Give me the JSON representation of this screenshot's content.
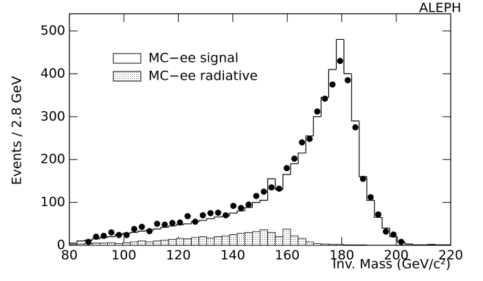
{
  "chart_data": {
    "type": "histogram",
    "experiment_label": "ALEPH",
    "xlabel": "Inv. Mass (GeV/c²)",
    "ylabel": "Events / 2.8 GeV",
    "bins": [
      80,
      82.8,
      85.6,
      88.4,
      91.2,
      94,
      96.8,
      99.6,
      102.4,
      105.2,
      108,
      110.8,
      113.6,
      116.4,
      119.2,
      122,
      124.8,
      127.6,
      130.4,
      133.2,
      136,
      138.8,
      141.6,
      144.4,
      147.2,
      150,
      152.8,
      155.6,
      158.4,
      161.2,
      164,
      166.8,
      169.6,
      172.4,
      175.2,
      178,
      180.8,
      183.6,
      186.4,
      189.2,
      192,
      194.8,
      197.6,
      200.4,
      203.2,
      206,
      208.8,
      211.6,
      214.4,
      217.2,
      220
    ],
    "series": [
      {
        "name": "MC−ee signal",
        "style": "step",
        "color": "#000000",
        "values": [
          5,
          10,
          12,
          15,
          18,
          20,
          25,
          28,
          30,
          33,
          35,
          38,
          42,
          45,
          48,
          50,
          55,
          58,
          62,
          66,
          68,
          75,
          80,
          88,
          100,
          105,
          155,
          130,
          165,
          190,
          215,
          255,
          300,
          345,
          410,
          480,
          400,
          290,
          160,
          105,
          65,
          40,
          20,
          8,
          3,
          1,
          1,
          2,
          1,
          1
        ]
      },
      {
        "name": "MC−ee radiative",
        "style": "filled",
        "color": "#999999",
        "values": [
          2,
          3,
          4,
          5,
          5,
          6,
          4,
          6,
          8,
          10,
          8,
          10,
          12,
          14,
          16,
          15,
          18,
          20,
          17,
          20,
          22,
          25,
          28,
          30,
          32,
          36,
          30,
          20,
          38,
          22,
          16,
          8,
          4,
          3,
          2,
          2,
          1,
          1,
          1,
          0,
          0,
          0,
          0,
          0,
          0,
          0,
          0,
          0,
          0,
          0
        ]
      },
      {
        "style": "points",
        "color": "#000000",
        "values": [
          null,
          null,
          8,
          20,
          22,
          30,
          24,
          24,
          38,
          43,
          33,
          50,
          48,
          52,
          53,
          68,
          55,
          70,
          75,
          76,
          70,
          92,
          87,
          95,
          115,
          125,
          135,
          132,
          180,
          202,
          240,
          248,
          312,
          342,
          375,
          430,
          385,
          275,
          155,
          112,
          72,
          32,
          25,
          8,
          null,
          null,
          null,
          null,
          null,
          null
        ]
      }
    ],
    "xlim": [
      80,
      220
    ],
    "ylim": [
      0,
      540
    ],
    "xticks": [
      80,
      100,
      120,
      140,
      160,
      180,
      200,
      220
    ],
    "yticks": [
      0,
      100,
      200,
      300,
      400,
      500
    ]
  }
}
